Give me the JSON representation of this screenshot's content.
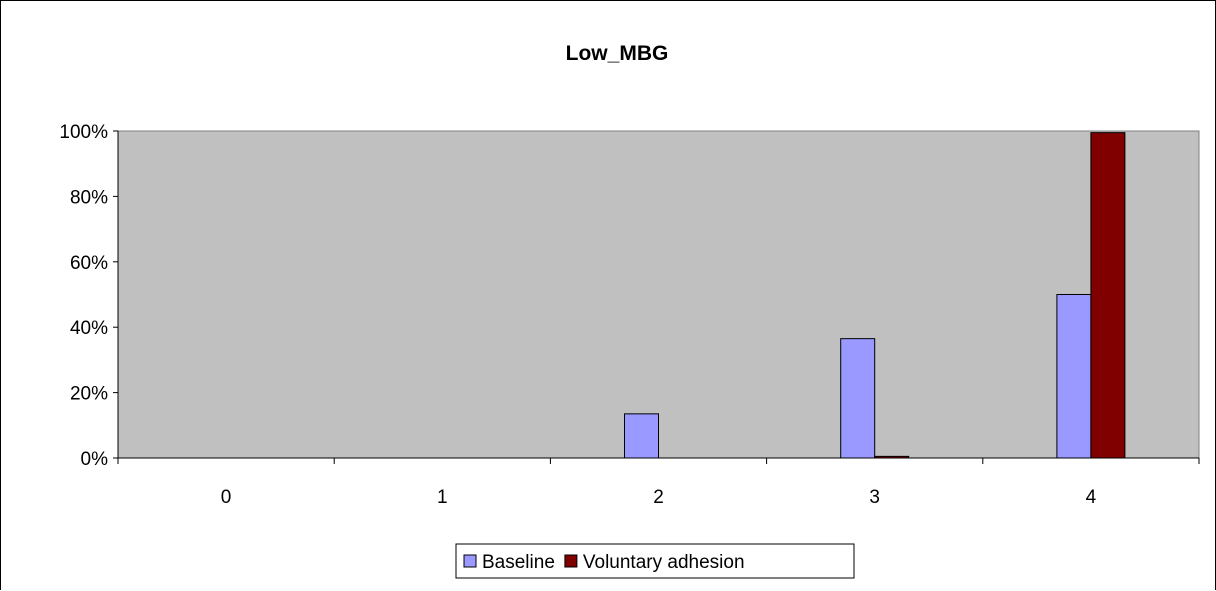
{
  "chart_data": {
    "type": "bar",
    "title": "Low_MBG",
    "xlabel": "",
    "ylabel": "",
    "categories": [
      "0",
      "1",
      "2",
      "3",
      "4"
    ],
    "y_ticks": [
      "0%",
      "20%",
      "40%",
      "60%",
      "80%",
      "100%"
    ],
    "ylim": [
      0,
      100
    ],
    "y_unit": "%",
    "grid": false,
    "plot_background": "#c0c0c0",
    "legend_position": "bottom",
    "series": [
      {
        "name": "Baseline",
        "color": "#9999ff",
        "values": [
          0,
          0,
          13.5,
          36.5,
          50
        ]
      },
      {
        "name": "Voluntary adhesion",
        "color": "#800000",
        "values": [
          0,
          0,
          0,
          0.5,
          99.5
        ]
      }
    ]
  }
}
